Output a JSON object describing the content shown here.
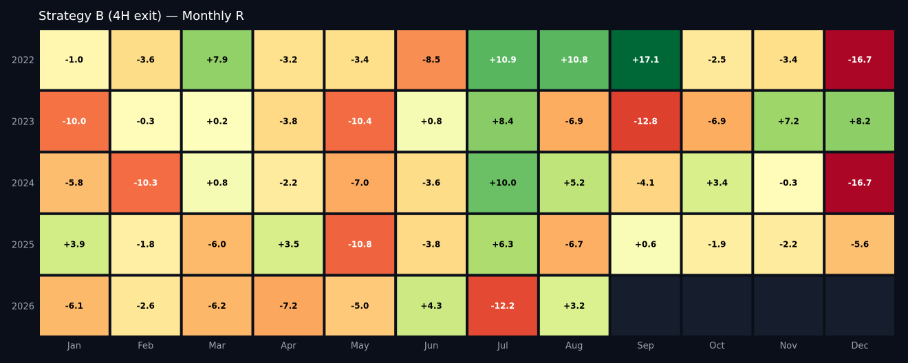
{
  "chart_data": {
    "type": "heatmap",
    "title": "Strategy B (4H exit) — Monthly R",
    "columns": [
      "Jan",
      "Feb",
      "Mar",
      "Apr",
      "May",
      "Jun",
      "Jul",
      "Aug",
      "Sep",
      "Oct",
      "Nov",
      "Dec"
    ],
    "rows": [
      "2022",
      "2023",
      "2024",
      "2025",
      "2026"
    ],
    "values": [
      [
        -1.0,
        -3.6,
        7.9,
        -3.2,
        -3.4,
        -8.5,
        10.9,
        10.8,
        17.1,
        -2.5,
        -3.4,
        -16.7
      ],
      [
        -10.0,
        -0.3,
        0.2,
        -3.8,
        -10.4,
        0.8,
        8.4,
        -6.9,
        -12.8,
        -6.9,
        7.2,
        8.2
      ],
      [
        -5.8,
        -10.3,
        0.8,
        -2.2,
        -7.0,
        -3.6,
        10.0,
        5.2,
        -4.1,
        3.4,
        -0.3,
        -16.7
      ],
      [
        3.9,
        -1.8,
        -6.0,
        3.5,
        -10.8,
        -3.8,
        6.3,
        -6.7,
        0.6,
        -1.9,
        -2.2,
        -5.6
      ],
      [
        -6.1,
        -2.6,
        -6.2,
        -7.2,
        -5.0,
        4.3,
        -12.2,
        3.2,
        null,
        null,
        null,
        null
      ]
    ],
    "labels": [
      [
        "-1.0",
        "-3.6",
        "+7.9",
        "-3.2",
        "-3.4",
        "-8.5",
        "+10.9",
        "+10.8",
        "+17.1",
        "-2.5",
        "-3.4",
        "-16.7"
      ],
      [
        "-10.0",
        "-0.3",
        "+0.2",
        "-3.8",
        "-10.4",
        "+0.8",
        "+8.4",
        "-6.9",
        "-12.8",
        "-6.9",
        "+7.2",
        "+8.2"
      ],
      [
        "-5.8",
        "-10.3",
        "+0.8",
        "-2.2",
        "-7.0",
        "-3.6",
        "+10.0",
        "+5.2",
        "-4.1",
        "+3.4",
        "-0.3",
        "-16.7"
      ],
      [
        "+3.9",
        "-1.8",
        "-6.0",
        "+3.5",
        "-10.8",
        "-3.8",
        "+6.3",
        "-6.7",
        "+0.6",
        "-1.9",
        "-2.2",
        "-5.6"
      ],
      [
        "-6.1",
        "-2.6",
        "-6.2",
        "-7.2",
        "-5.0",
        "+4.3",
        "-12.2",
        "+3.2",
        "",
        "",
        "",
        ""
      ]
    ],
    "colorscale": "RdYlGn",
    "color_range": [
      -17.1,
      17.1
    ],
    "empty_cell_color": "#161d2d",
    "background_color": "#0b0f19",
    "tick_label_color": "#9aa1ad"
  }
}
